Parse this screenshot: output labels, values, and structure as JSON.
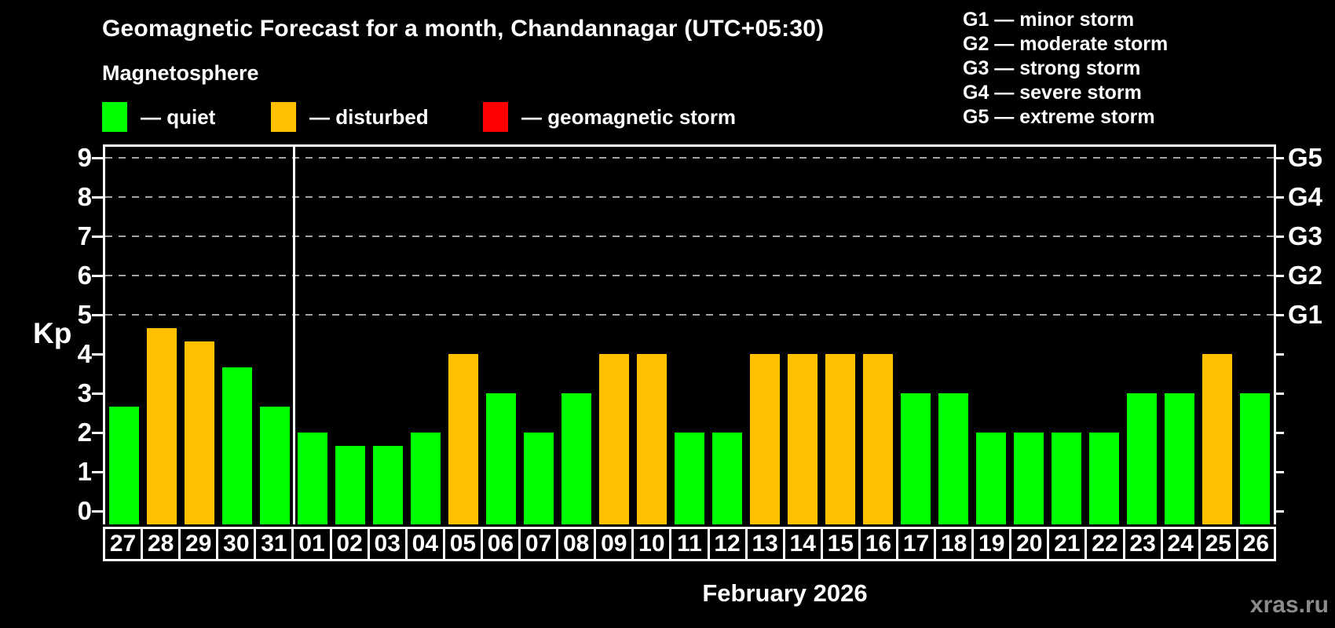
{
  "header": {
    "title": "Geomagnetic Forecast for a month, Chandannagar (UTC+05:30)",
    "subtitle": "Magnetosphere"
  },
  "legend": {
    "items": [
      {
        "label": "— quiet",
        "color": "#00ff00",
        "status": "quiet"
      },
      {
        "label": "— disturbed",
        "color": "#ffc000",
        "status": "disturbed"
      },
      {
        "label": "— geomagnetic storm",
        "color": "#ff0000",
        "status": "storm"
      }
    ]
  },
  "storm_legend": {
    "items": [
      "G1 — minor storm",
      "G2 — moderate storm",
      "G3 — strong storm",
      "G4 — severe storm",
      "G5 — extreme storm"
    ]
  },
  "chart_data": {
    "type": "bar",
    "title": "Geomagnetic Forecast for a month, Chandannagar (UTC+05:30)",
    "ylabel": "Kp",
    "xlabel": "February 2026",
    "ylim": [
      0,
      9
    ],
    "yticks": [
      0,
      1,
      2,
      3,
      4,
      5,
      6,
      7,
      8,
      9
    ],
    "gridlines_at": [
      5,
      6,
      7,
      8,
      9
    ],
    "right_axis_labels": [
      {
        "kp": 5,
        "label": "G1"
      },
      {
        "kp": 6,
        "label": "G2"
      },
      {
        "kp": 7,
        "label": "G3"
      },
      {
        "kp": 8,
        "label": "G4"
      },
      {
        "kp": 9,
        "label": "G5"
      }
    ],
    "month_separator_after_index": 4,
    "status_colors": {
      "quiet": "#00ff00",
      "disturbed": "#ffc000",
      "storm": "#ff0000"
    },
    "categories": [
      "27",
      "28",
      "29",
      "30",
      "31",
      "01",
      "02",
      "03",
      "04",
      "05",
      "06",
      "07",
      "08",
      "09",
      "10",
      "11",
      "12",
      "13",
      "14",
      "15",
      "16",
      "17",
      "18",
      "19",
      "20",
      "21",
      "22",
      "23",
      "24",
      "25",
      "26"
    ],
    "values": [
      2.67,
      4.67,
      4.33,
      3.67,
      2.67,
      2,
      1.67,
      1.67,
      2,
      4,
      3,
      2,
      3,
      4,
      4,
      2,
      2,
      4,
      4,
      4,
      4,
      3,
      3,
      2,
      2,
      2,
      2,
      3,
      3,
      4,
      3
    ],
    "statuses": [
      "quiet",
      "disturbed",
      "disturbed",
      "quiet",
      "quiet",
      "quiet",
      "quiet",
      "quiet",
      "quiet",
      "disturbed",
      "quiet",
      "quiet",
      "quiet",
      "disturbed",
      "disturbed",
      "quiet",
      "quiet",
      "disturbed",
      "disturbed",
      "disturbed",
      "disturbed",
      "quiet",
      "quiet",
      "quiet",
      "quiet",
      "quiet",
      "quiet",
      "quiet",
      "quiet",
      "disturbed",
      "quiet"
    ]
  },
  "footer": {
    "watermark": "xras.ru"
  }
}
